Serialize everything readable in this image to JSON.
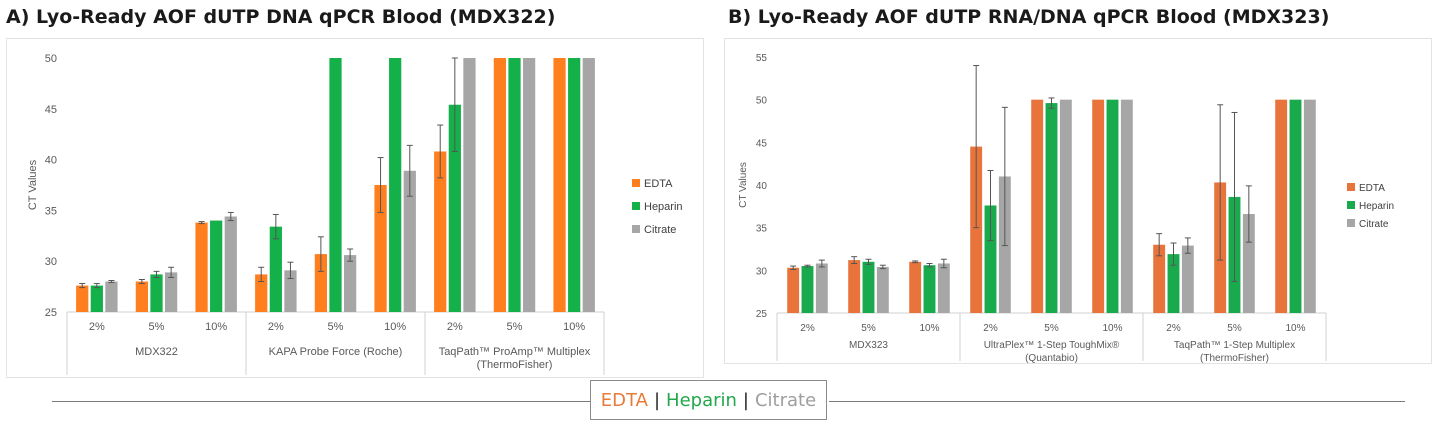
{
  "panels": {
    "a_title": "A) Lyo-Ready AOF dUTP DNA qPCR Blood (MDX322)",
    "b_title": "B) Lyo-Ready AOF dUTP RNA/DNA qPCR Blood (MDX323)"
  },
  "footer": {
    "edta": "EDTA",
    "sep1": "|",
    "heparin": "Heparin",
    "sep2": "|",
    "citrate": "Citrate",
    "colors": {
      "edta": "#e87b3a",
      "heparin": "#22a84a",
      "citrate": "#9e9e9e"
    }
  },
  "chart_data": [
    {
      "type": "bar",
      "title": "A) Lyo-Ready AOF dUTP DNA qPCR Blood (MDX322)",
      "ylabel": "CT Values",
      "ylim": [
        25,
        50
      ],
      "yticks": [
        25,
        30,
        35,
        40,
        45,
        50
      ],
      "grid": false,
      "legend_position": "right",
      "groups": [
        {
          "label": "MDX322",
          "categories": [
            "2%",
            "5%",
            "10%"
          ]
        },
        {
          "label": "KAPA Probe Force (Roche)",
          "categories": [
            "2%",
            "5%",
            "10%"
          ]
        },
        {
          "label": "TaqPath™ ProAmp™ Multiplex\n(ThermoFisher)",
          "categories": [
            "2%",
            "5%",
            "10%"
          ]
        }
      ],
      "series": [
        {
          "name": "EDTA",
          "color": "#ff7f1e",
          "values": [
            27.6,
            28.0,
            33.8,
            28.7,
            30.7,
            37.5,
            40.8,
            50,
            50
          ],
          "errors": [
            0.2,
            0.2,
            0.1,
            0.7,
            1.7,
            2.7,
            2.6,
            0,
            0
          ]
        },
        {
          "name": "Heparin",
          "color": "#14b04a",
          "values": [
            27.6,
            28.7,
            34.0,
            33.4,
            50,
            50,
            45.4,
            50,
            50
          ],
          "errors": [
            0.2,
            0.3,
            0,
            1.2,
            0,
            0,
            4.6,
            0,
            0
          ]
        },
        {
          "name": "Citrate",
          "color": "#a6a6a6",
          "values": [
            28.0,
            28.9,
            34.4,
            29.1,
            30.6,
            38.9,
            50,
            50,
            50
          ],
          "errors": [
            0.1,
            0.5,
            0.4,
            0.8,
            0.6,
            2.5,
            0,
            0,
            0
          ]
        }
      ]
    },
    {
      "type": "bar",
      "title": "B) Lyo-Ready AOF dUTP RNA/DNA qPCR Blood (MDX323)",
      "ylabel": "CT Values",
      "ylim": [
        25,
        55
      ],
      "yticks": [
        25,
        30,
        35,
        40,
        45,
        50,
        55
      ],
      "grid": false,
      "legend_position": "right",
      "groups": [
        {
          "label": "MDX323",
          "categories": [
            "2%",
            "5%",
            "10%"
          ]
        },
        {
          "label": "UltraPlex™ 1-Step ToughMix®\n(Quantabio)",
          "categories": [
            "2%",
            "5%",
            "10%"
          ]
        },
        {
          "label": "TaqPath™ 1-Step Multiplex\n(ThermoFisher)",
          "categories": [
            "2%",
            "5%",
            "10%"
          ]
        }
      ],
      "series": [
        {
          "name": "EDTA",
          "color": "#e8743b",
          "values": [
            30.3,
            31.2,
            31.0,
            44.5,
            50,
            50,
            33.0,
            40.3,
            50
          ],
          "errors": [
            0.2,
            0.4,
            0.1,
            9.5,
            0,
            0,
            1.3,
            9.1,
            0
          ]
        },
        {
          "name": "Heparin",
          "color": "#1aaa4e",
          "values": [
            30.5,
            31.0,
            30.6,
            37.6,
            49.6,
            50,
            31.9,
            38.6,
            50
          ],
          "errors": [
            0.1,
            0.3,
            0.2,
            4.1,
            0.6,
            0,
            1.3,
            9.9,
            0
          ]
        },
        {
          "name": "Citrate",
          "color": "#a6a6a6",
          "values": [
            30.8,
            30.4,
            30.8,
            41.0,
            50,
            50,
            32.9,
            36.6,
            50
          ],
          "errors": [
            0.4,
            0.2,
            0.5,
            8.1,
            0,
            0,
            0.9,
            3.3,
            0
          ]
        }
      ]
    }
  ]
}
